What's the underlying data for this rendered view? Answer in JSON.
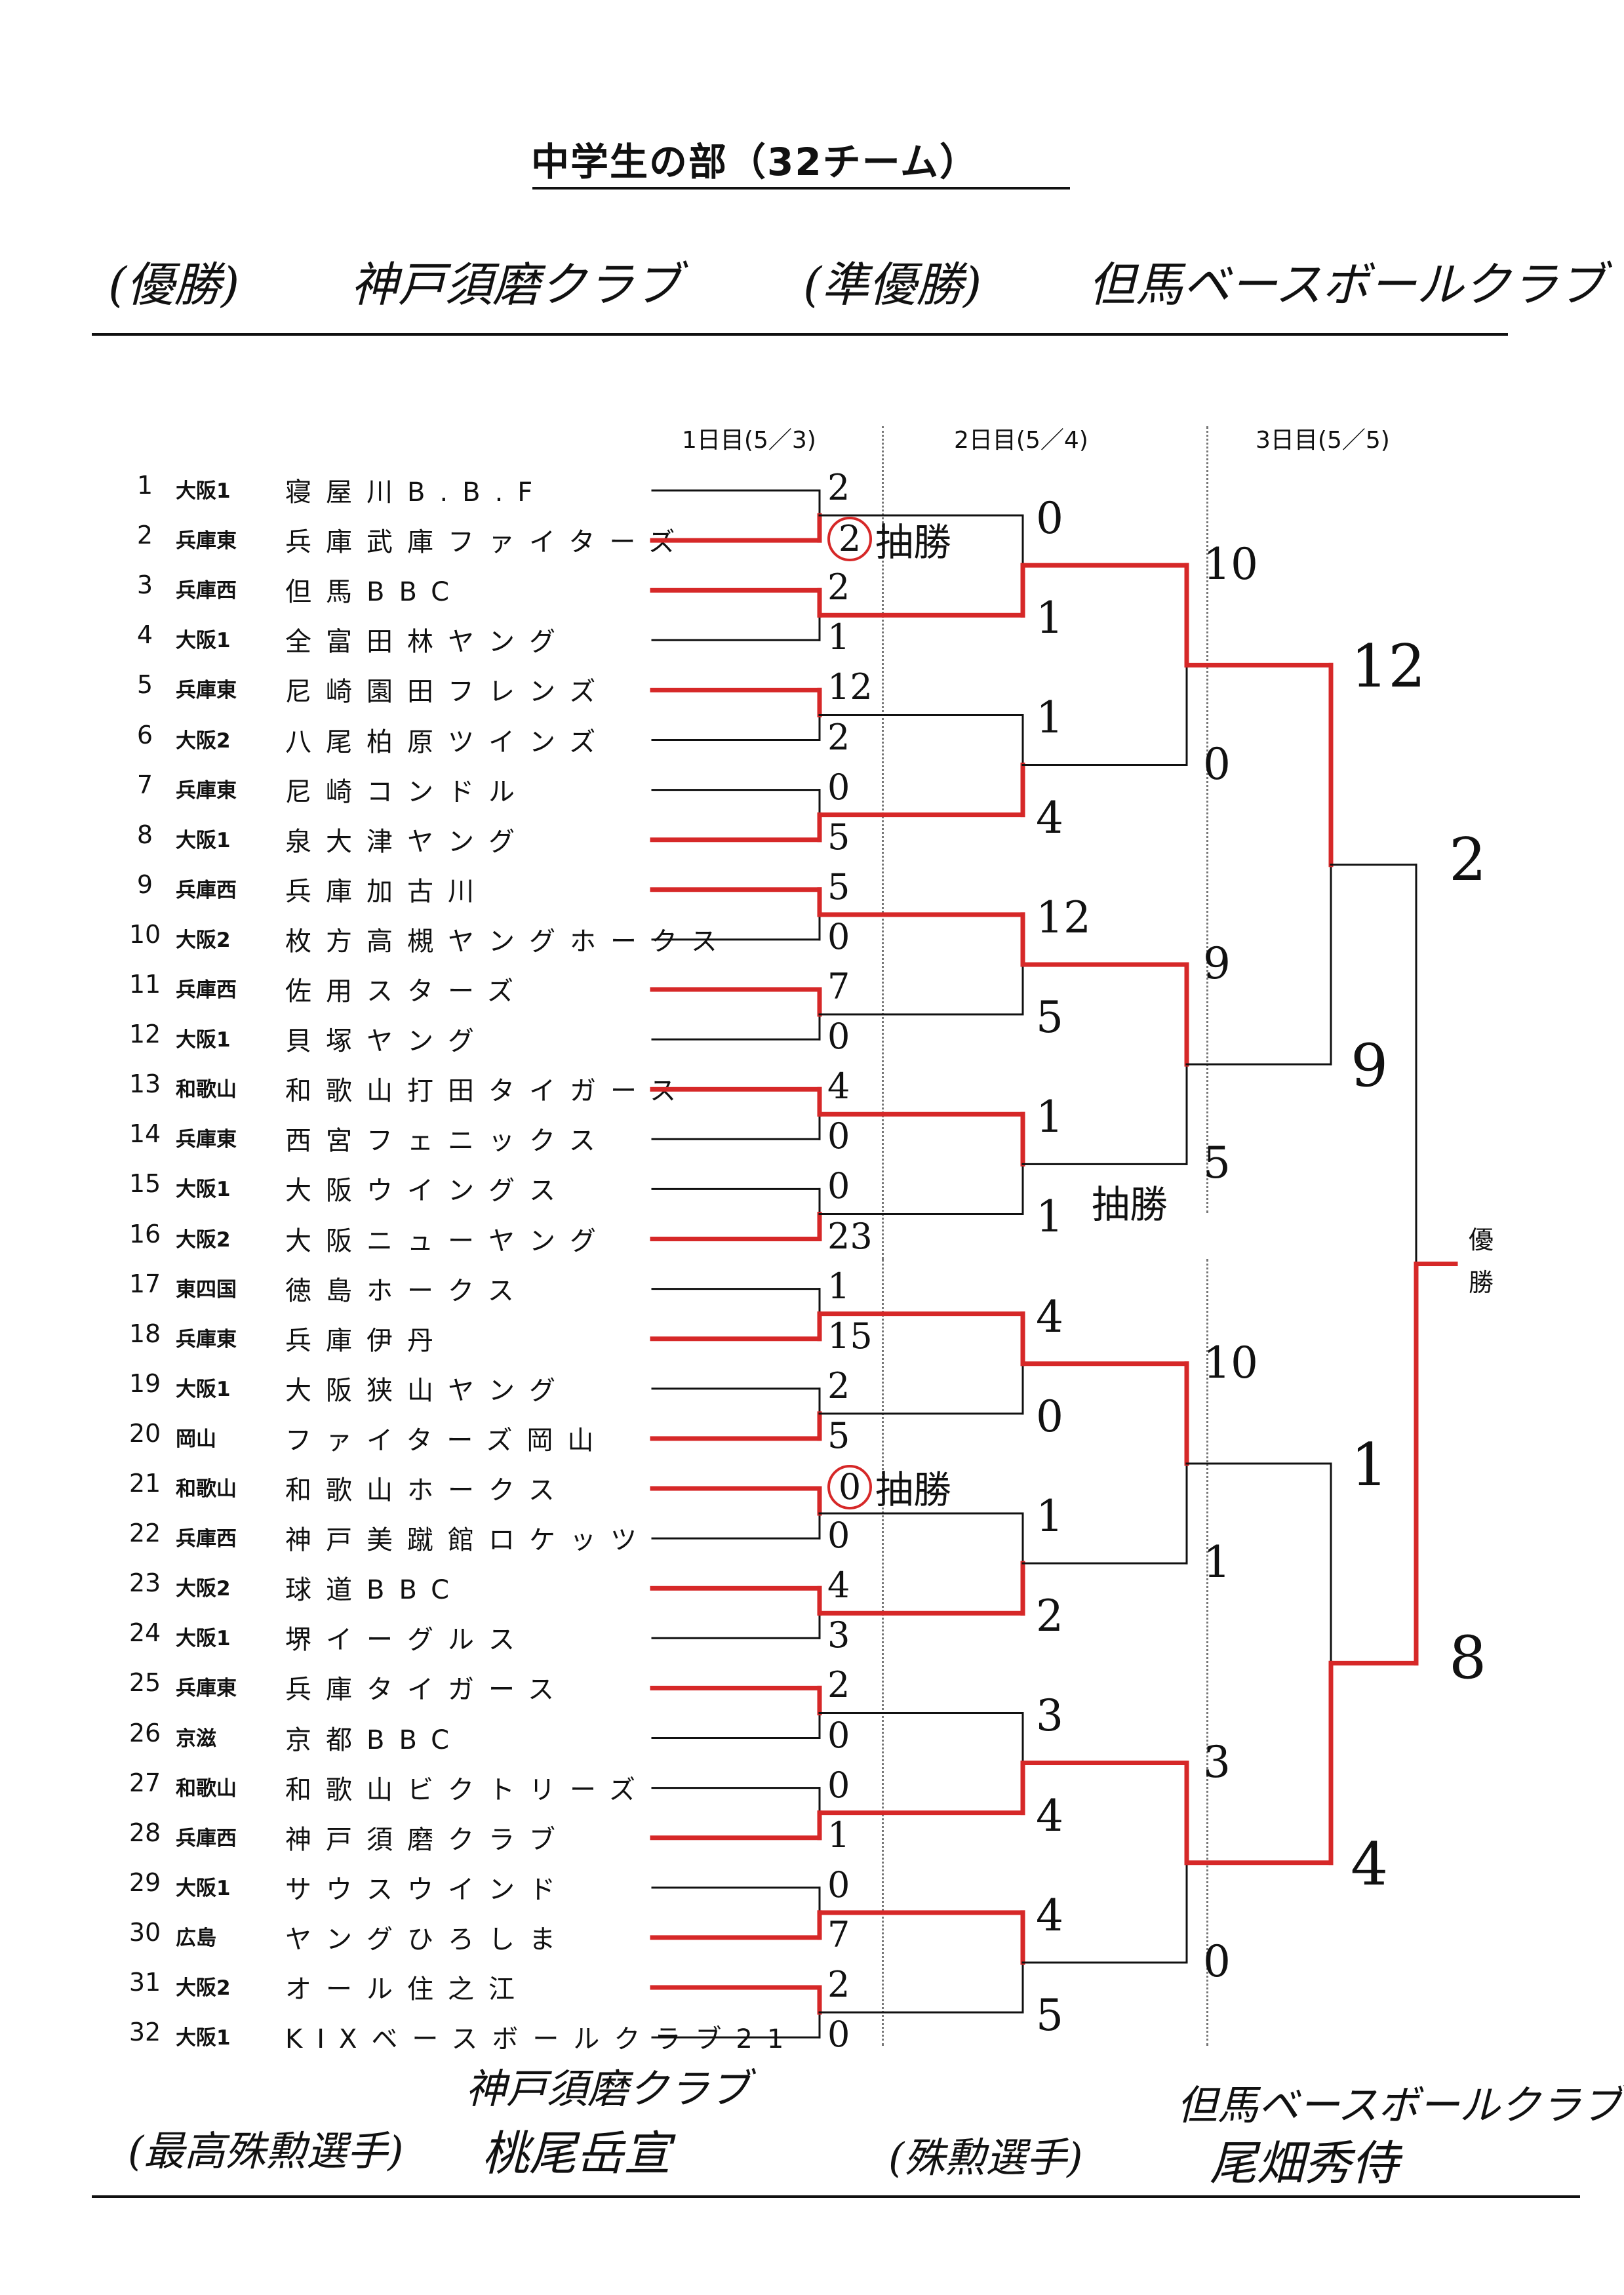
{
  "title": "中学生の部（32チーム）",
  "winner": {
    "label": "(優勝)",
    "team": "神戸須磨クラブ"
  },
  "runner_up": {
    "label": "(準優勝)",
    "team": "但馬ベースボールクラブ"
  },
  "days": [
    "1日目(5／3)",
    "2日目(5／4)",
    "3日目(5／5)"
  ],
  "champion_label": [
    "優",
    "勝"
  ],
  "lottery_text": "抽勝",
  "teams": [
    {
      "num": "1",
      "region": "大阪1",
      "name": "寝屋川B.B.F"
    },
    {
      "num": "2",
      "region": "兵庫東",
      "name": "兵庫武庫ファイターズ"
    },
    {
      "num": "3",
      "region": "兵庫西",
      "name": "但馬BBC"
    },
    {
      "num": "4",
      "region": "大阪1",
      "name": "全富田林ヤング"
    },
    {
      "num": "5",
      "region": "兵庫東",
      "name": "尼崎園田フレンズ"
    },
    {
      "num": "6",
      "region": "大阪2",
      "name": "八尾柏原ツインズ"
    },
    {
      "num": "7",
      "region": "兵庫東",
      "name": "尼崎コンドル"
    },
    {
      "num": "8",
      "region": "大阪1",
      "name": "泉大津ヤング"
    },
    {
      "num": "9",
      "region": "兵庫西",
      "name": "兵庫加古川"
    },
    {
      "num": "10",
      "region": "大阪2",
      "name": "枚方高槻ヤングホークス"
    },
    {
      "num": "11",
      "region": "兵庫西",
      "name": "佐用スターズ"
    },
    {
      "num": "12",
      "region": "大阪1",
      "name": "貝塚ヤング"
    },
    {
      "num": "13",
      "region": "和歌山",
      "name": "和歌山打田タイガース"
    },
    {
      "num": "14",
      "region": "兵庫東",
      "name": "西宮フェニックス"
    },
    {
      "num": "15",
      "region": "大阪1",
      "name": "大阪ウイングス"
    },
    {
      "num": "16",
      "region": "大阪2",
      "name": "大阪ニューヤング"
    },
    {
      "num": "17",
      "region": "東四国",
      "name": "徳島ホークス"
    },
    {
      "num": "18",
      "region": "兵庫東",
      "name": "兵庫伊丹"
    },
    {
      "num": "19",
      "region": "大阪1",
      "name": "大阪狭山ヤング"
    },
    {
      "num": "20",
      "region": "岡山",
      "name": "ファイターズ岡山"
    },
    {
      "num": "21",
      "region": "和歌山",
      "name": "和歌山ホークス"
    },
    {
      "num": "22",
      "region": "兵庫西",
      "name": "神戸美蹴館ロケッツ"
    },
    {
      "num": "23",
      "region": "大阪2",
      "name": "球道BBC"
    },
    {
      "num": "24",
      "region": "大阪1",
      "name": "堺イーグルス"
    },
    {
      "num": "25",
      "region": "兵庫東",
      "name": "兵庫タイガース"
    },
    {
      "num": "26",
      "region": "京滋",
      "name": "京都BBC"
    },
    {
      "num": "27",
      "region": "和歌山",
      "name": "和歌山ビクトリーズ"
    },
    {
      "num": "28",
      "region": "兵庫西",
      "name": "神戸須磨クラブ"
    },
    {
      "num": "29",
      "region": "大阪1",
      "name": "サウスウインド"
    },
    {
      "num": "30",
      "region": "広島",
      "name": "ヤングひろしま"
    },
    {
      "num": "31",
      "region": "大阪2",
      "name": "オール住之江"
    },
    {
      "num": "32",
      "region": "大阪1",
      "name": "KIXベースボールクラブ21"
    }
  ],
  "scores": {
    "r1": [
      "2",
      "2",
      "2",
      "1",
      "12",
      "2",
      "0",
      "5",
      "5",
      "0",
      "7",
      "0",
      "4",
      "0",
      "0",
      "23",
      "1",
      "15",
      "2",
      "5",
      "0",
      "0",
      "4",
      "3",
      "2",
      "0",
      "0",
      "1",
      "0",
      "7",
      "2",
      "0"
    ],
    "r2": [
      "0",
      "1",
      "1",
      "4",
      "12",
      "5",
      "1",
      "1",
      "4",
      "0",
      "1",
      "2",
      "3",
      "4",
      "4",
      "5"
    ],
    "r3": [
      "10",
      "0",
      "9",
      "5",
      "10",
      "1",
      "3",
      "0"
    ],
    "r4": [
      "12",
      "9",
      "1",
      "4"
    ],
    "r5": [
      "2",
      "8"
    ]
  },
  "mvp": {
    "label": "(最高殊勲選手)",
    "team": "神戸須磨クラブ",
    "player": "桃尾岳宣"
  },
  "fighting": {
    "label": "(殊勲選手)",
    "team": "但馬ベースボールクラブ",
    "player": "尾畑秀侍"
  }
}
